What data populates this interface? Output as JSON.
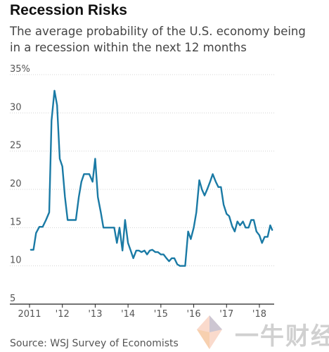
{
  "title": "Recession Risks",
  "subtitle": "The average probability of the U.S. economy being in a recession within the next 12 months",
  "source": "Source: WSJ Survey of Economists",
  "watermark": {
    "text": "一牛财经",
    "logo_icon": "bull-logo-icon"
  },
  "colors": {
    "line": "#1a7aa5",
    "grid": "#d4d4d4",
    "axis": "#222222"
  },
  "chart_data": {
    "type": "line",
    "title": "Recession Risks",
    "xlabel": "",
    "ylabel": "",
    "ylim": [
      5,
      35
    ],
    "xlim": [
      2011.0,
      2018.45
    ],
    "y_ticks": [
      {
        "value": 35,
        "label": "35%"
      },
      {
        "value": 30,
        "label": "30"
      },
      {
        "value": 25,
        "label": "25"
      },
      {
        "value": 20,
        "label": "20"
      },
      {
        "value": 15,
        "label": "15"
      },
      {
        "value": 10,
        "label": "10"
      },
      {
        "value": 5,
        "label": "5"
      }
    ],
    "x_ticks": [
      {
        "value": 2011,
        "label": "2011"
      },
      {
        "value": 2012,
        "label": "'12"
      },
      {
        "value": 2013,
        "label": "'13"
      },
      {
        "value": 2014,
        "label": "'14"
      },
      {
        "value": 2015,
        "label": "'15"
      },
      {
        "value": 2016,
        "label": "'16"
      },
      {
        "value": 2017,
        "label": "'17"
      },
      {
        "value": 2018,
        "label": "'18"
      }
    ],
    "grid": true,
    "series": [
      {
        "x": [
          2011.04,
          2011.12,
          2011.2,
          2011.3,
          2011.4,
          2011.5,
          2011.6,
          2011.67,
          2011.76,
          2011.84,
          2011.92,
          2012.0,
          2012.08,
          2012.16,
          2012.25,
          2012.33,
          2012.41,
          2012.5,
          2012.58,
          2012.66,
          2012.74,
          2012.82,
          2012.92,
          2013.0,
          2013.08,
          2013.17,
          2013.25,
          2013.33,
          2013.41,
          2013.5,
          2013.58,
          2013.66,
          2013.74,
          2013.83,
          2013.91,
          2014.0,
          2014.08,
          2014.16,
          2014.25,
          2014.33,
          2014.41,
          2014.5,
          2014.58,
          2014.66,
          2014.74,
          2014.83,
          2014.91,
          2015.0,
          2015.08,
          2015.17,
          2015.25,
          2015.33,
          2015.41,
          2015.5,
          2015.58,
          2015.66,
          2015.74,
          2015.83,
          2015.91,
          2016.0,
          2016.08,
          2016.17,
          2016.25,
          2016.33,
          2016.41,
          2016.5,
          2016.58,
          2016.67,
          2016.75,
          2016.83,
          2016.91,
          2017.0,
          2017.08,
          2017.17,
          2017.25,
          2017.33,
          2017.41,
          2017.5,
          2017.58,
          2017.67,
          2017.75,
          2017.83,
          2017.91,
          2018.0,
          2018.08,
          2018.16,
          2018.25,
          2018.33,
          2018.39
        ],
        "values": [
          12.1,
          12.1,
          14.3,
          15.1,
          15.1,
          16.0,
          17.0,
          29.0,
          32.9,
          31.0,
          24.0,
          23.0,
          19.0,
          16.0,
          16.0,
          16.0,
          16.0,
          19.0,
          21.0,
          22.0,
          22.0,
          22.0,
          21.0,
          24.0,
          19.0,
          17.0,
          15.0,
          15.0,
          15.0,
          15.0,
          15.0,
          13.0,
          15.0,
          12.0,
          16.0,
          13.0,
          12.0,
          11.0,
          12.0,
          12.0,
          11.8,
          12.0,
          11.5,
          12.0,
          12.1,
          11.8,
          11.8,
          11.5,
          11.5,
          11.0,
          10.6,
          11.0,
          11.0,
          10.2,
          10.0,
          10.0,
          10.0,
          14.5,
          13.5,
          15.0,
          17.0,
          21.2,
          20.0,
          19.2,
          20.0,
          21.0,
          22.0,
          21.0,
          20.3,
          20.3,
          18.0,
          16.8,
          16.5,
          15.2,
          14.5,
          15.8,
          15.3,
          15.8,
          15.0,
          15.0,
          16.0,
          16.0,
          14.5,
          14.0,
          13.0,
          13.8,
          13.8,
          15.3,
          14.7
        ]
      }
    ]
  }
}
